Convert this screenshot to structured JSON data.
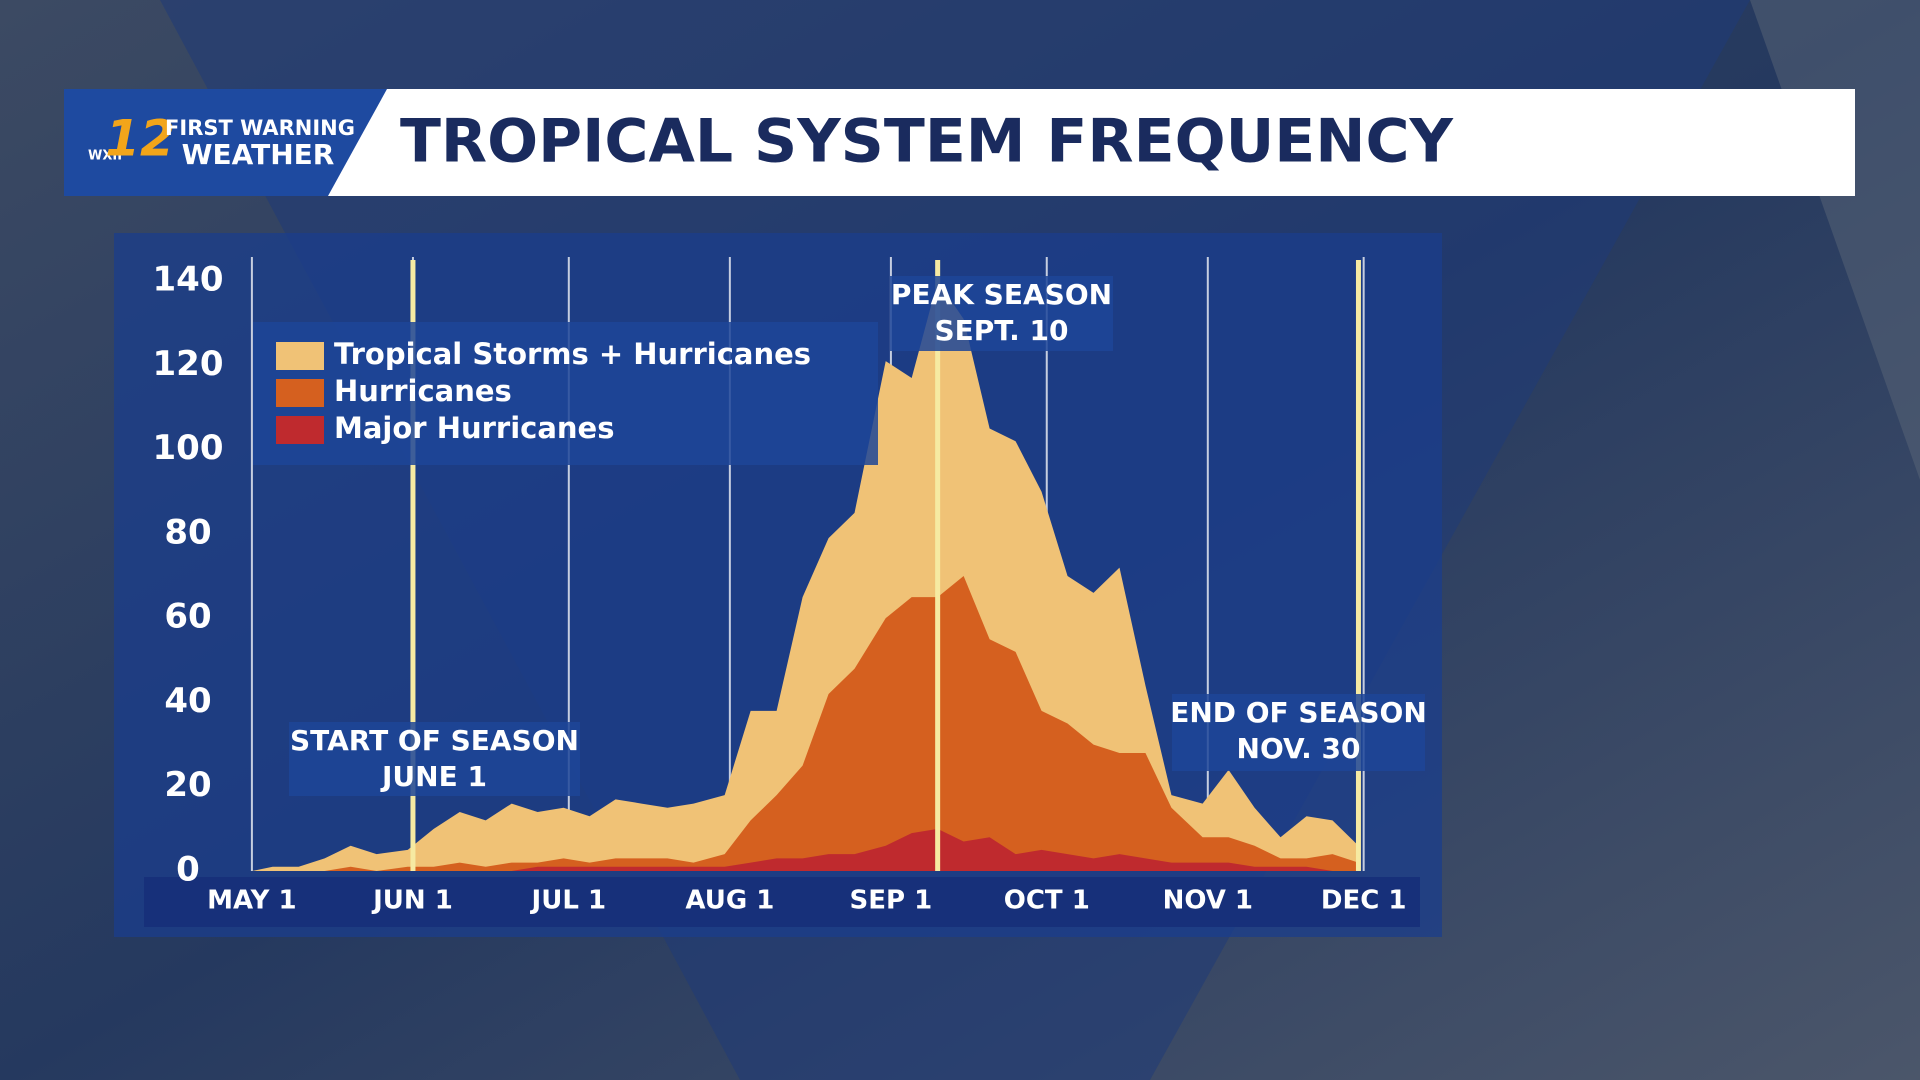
{
  "logo": {
    "network": "WXII",
    "channel": "12",
    "top": "FIRST WARNING",
    "bottom": "WEATHER"
  },
  "chart_data": {
    "type": "area",
    "title": "TROPICAL SYSTEM FREQUENCY",
    "x": [
      "05-01",
      "05-05",
      "05-10",
      "05-15",
      "05-20",
      "05-25",
      "05-31",
      "06-05",
      "06-10",
      "06-15",
      "06-20",
      "06-25",
      "06-30",
      "07-05",
      "07-10",
      "07-15",
      "07-20",
      "07-25",
      "07-31",
      "08-05",
      "08-10",
      "08-15",
      "08-20",
      "08-25",
      "08-31",
      "09-05",
      "09-10",
      "09-15",
      "09-20",
      "09-25",
      "09-30",
      "10-05",
      "10-10",
      "10-15",
      "10-20",
      "10-25",
      "10-31",
      "11-05",
      "11-10",
      "11-15",
      "11-20",
      "11-25",
      "11-30"
    ],
    "series": [
      {
        "name": "Tropical Storms + Hurricanes",
        "color": "#f0c276",
        "values": [
          0,
          1,
          1,
          3,
          6,
          4,
          5,
          10,
          14,
          12,
          16,
          14,
          15,
          13,
          17,
          16,
          15,
          16,
          18,
          38,
          38,
          65,
          79,
          85,
          121,
          117,
          140,
          131,
          105,
          102,
          90,
          70,
          66,
          72,
          44,
          18,
          16,
          24,
          15,
          8,
          13,
          12,
          6
        ]
      },
      {
        "name": "Hurricanes",
        "color": "#d5601f",
        "values": [
          0,
          0,
          0,
          0,
          1,
          0,
          1,
          1,
          2,
          1,
          2,
          2,
          3,
          2,
          3,
          3,
          3,
          2,
          4,
          12,
          18,
          25,
          42,
          48,
          60,
          65,
          65,
          70,
          55,
          52,
          38,
          35,
          30,
          28,
          28,
          15,
          8,
          8,
          6,
          3,
          3,
          4,
          2
        ]
      },
      {
        "name": "Major Hurricanes",
        "color": "#bf2a2e",
        "values": [
          0,
          0,
          0,
          0,
          0,
          0,
          0,
          0,
          0,
          0,
          0,
          1,
          1,
          1,
          1,
          1,
          1,
          1,
          1,
          2,
          3,
          3,
          4,
          4,
          6,
          9,
          10,
          7,
          8,
          4,
          5,
          4,
          3,
          4,
          3,
          2,
          2,
          2,
          1,
          1,
          1,
          0,
          0
        ]
      }
    ],
    "xlim": [
      "04-11",
      "12-13"
    ],
    "xticks": [
      {
        "value": "05-01",
        "label": "MAY 1"
      },
      {
        "value": "06-01",
        "label": "JUN 1"
      },
      {
        "value": "07-01",
        "label": "JUL 1"
      },
      {
        "value": "08-01",
        "label": "AUG 1"
      },
      {
        "value": "09-01",
        "label": "SEP 1"
      },
      {
        "value": "10-01",
        "label": "OCT 1"
      },
      {
        "value": "11-01",
        "label": "NOV 1"
      },
      {
        "value": "12-01",
        "label": "DEC 1"
      }
    ],
    "ylim": [
      0,
      145
    ],
    "yticks": [
      0,
      20,
      40,
      60,
      80,
      100,
      120,
      140
    ],
    "grid": true,
    "legend": "upper-left",
    "annotations": [
      {
        "x": "06-01",
        "lines": [
          "START OF SEASON",
          "JUNE 1"
        ]
      },
      {
        "x": "09-10",
        "lines": [
          "PEAK SEASON",
          "SEPT. 10"
        ]
      },
      {
        "x": "11-30",
        "lines": [
          "END OF SEASON",
          "NOV. 30"
        ]
      }
    ],
    "annotation_color": "#f6eaa2"
  }
}
